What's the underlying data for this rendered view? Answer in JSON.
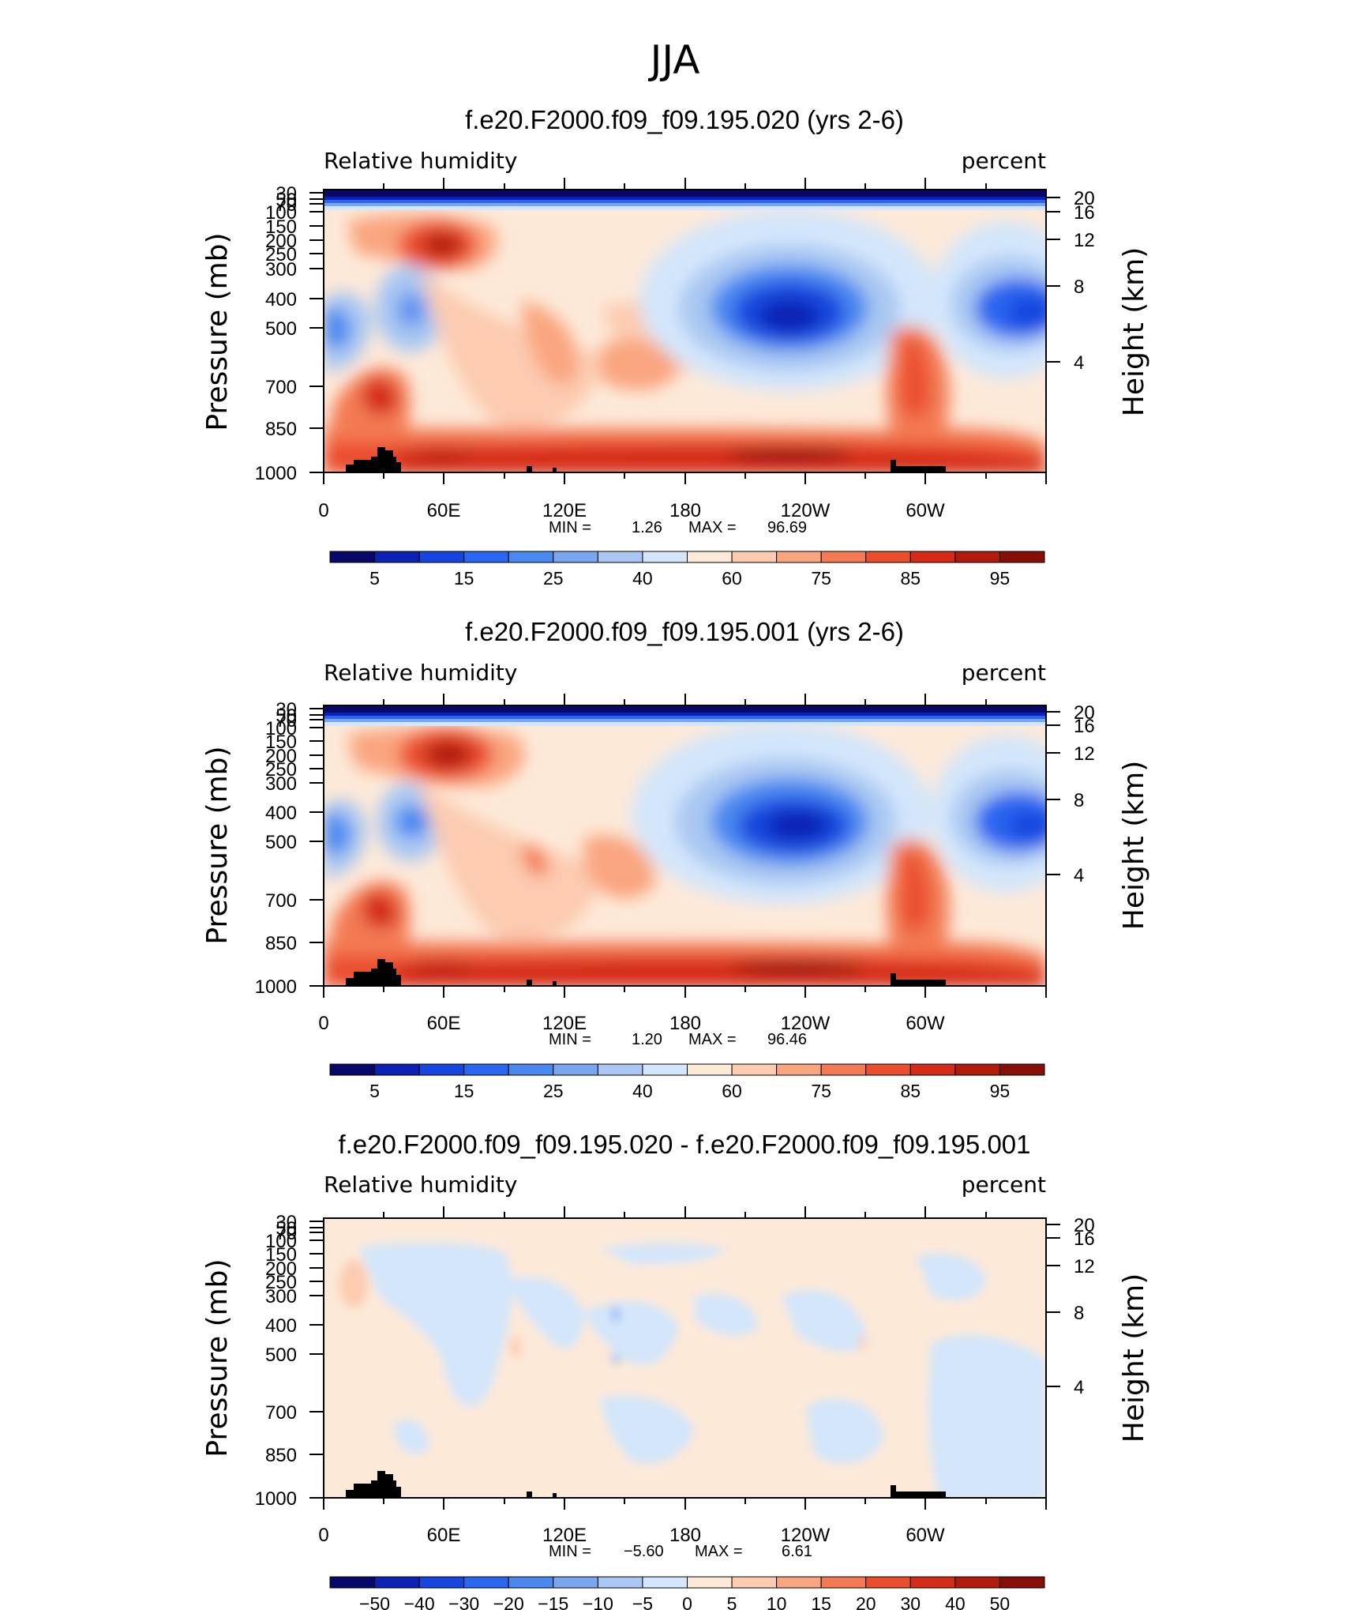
{
  "figure_title": "JJA",
  "colors": {
    "abs_levels": [
      "#08086b",
      "#0b22b4",
      "#1746de",
      "#2a66f0",
      "#4a88f0",
      "#7aa6ef",
      "#a9c7f2",
      "#d3e6fb",
      "#fde9d8",
      "#fccbb0",
      "#f9a57f",
      "#f37a52",
      "#ea4e2e",
      "#d42c16",
      "#b21a0c",
      "#861007"
    ],
    "diff_levels": [
      "#08086b",
      "#0b22b4",
      "#1746de",
      "#2a66f0",
      "#4a88f0",
      "#7aa6ef",
      "#a9c7f2",
      "#d3e6fb",
      "#fde9d8",
      "#fccbb0",
      "#f9a57f",
      "#f37a52",
      "#ea4e2e",
      "#d42c16",
      "#b21a0c",
      "#861007"
    ],
    "land": "#000000"
  },
  "chart_data": [
    {
      "type": "heatmap",
      "title": "f.e20.F2000.f09_f09.195.020 (yrs 2-6)",
      "left_label": "Relative humidity",
      "right_label": "percent",
      "ylabel": "Pressure (mb)",
      "y2label": "Height (km)",
      "x_ticks": [
        "0",
        "60E",
        "120E",
        "180",
        "120W",
        "60W"
      ],
      "y_ticks": [
        "30",
        "50",
        "70",
        "100",
        "150",
        "200",
        "250",
        "300",
        "400",
        "500",
        "700",
        "850",
        "1000"
      ],
      "y2_ticks": [
        "20",
        "16",
        "12",
        "8",
        "4"
      ],
      "stats": {
        "min_label": "MIN =",
        "min": "1.26",
        "max_label": "MAX =",
        "max": "96.69"
      },
      "colorbar_labels": [
        "5",
        "15",
        "25",
        "40",
        "60",
        "75",
        "85",
        "95"
      ],
      "xlim": [
        0,
        360
      ],
      "ylim": [
        1000,
        30
      ]
    },
    {
      "type": "heatmap",
      "title": "f.e20.F2000.f09_f09.195.001 (yrs 2-6)",
      "left_label": "Relative humidity",
      "right_label": "percent",
      "ylabel": "Pressure (mb)",
      "y2label": "Height (km)",
      "x_ticks": [
        "0",
        "60E",
        "120E",
        "180",
        "120W",
        "60W"
      ],
      "y_ticks": [
        "30",
        "50",
        "70",
        "100",
        "150",
        "200",
        "250",
        "300",
        "400",
        "500",
        "700",
        "850",
        "1000"
      ],
      "y2_ticks": [
        "20",
        "16",
        "12",
        "8",
        "4"
      ],
      "stats": {
        "min_label": "MIN =",
        "min": "1.20",
        "max_label": "MAX =",
        "max": "96.46"
      },
      "colorbar_labels": [
        "5",
        "15",
        "25",
        "40",
        "60",
        "75",
        "85",
        "95"
      ],
      "xlim": [
        0,
        360
      ],
      "ylim": [
        1000,
        30
      ]
    },
    {
      "type": "heatmap",
      "title": "f.e20.F2000.f09_f09.195.020 - f.e20.F2000.f09_f09.195.001",
      "left_label": "Relative humidity",
      "right_label": "percent",
      "ylabel": "Pressure (mb)",
      "y2label": "Height (km)",
      "x_ticks": [
        "0",
        "60E",
        "120E",
        "180",
        "120W",
        "60W"
      ],
      "y_ticks": [
        "30",
        "50",
        "70",
        "100",
        "150",
        "200",
        "250",
        "300",
        "400",
        "500",
        "700",
        "850",
        "1000"
      ],
      "y2_ticks": [
        "20",
        "16",
        "12",
        "8",
        "4"
      ],
      "stats": {
        "min_label": "MIN =",
        "min": "−5.60",
        "max_label": "MAX =",
        "max": "6.61"
      },
      "colorbar_labels": [
        "−50",
        "−40",
        "−30",
        "−20",
        "−15",
        "−10",
        "−5",
        "0",
        "5",
        "10",
        "15",
        "20",
        "30",
        "40",
        "50"
      ],
      "xlim": [
        0,
        360
      ],
      "ylim": [
        1000,
        30
      ]
    }
  ]
}
